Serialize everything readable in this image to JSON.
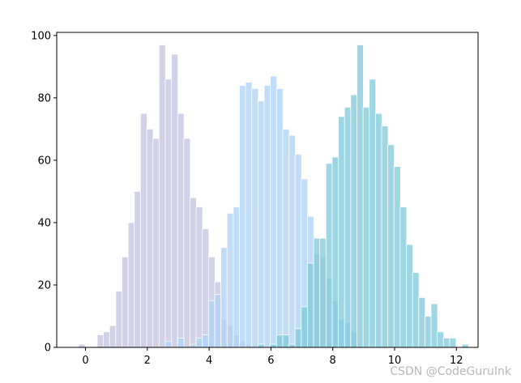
{
  "chart_data": {
    "type": "bar",
    "title": "",
    "xlabel": "",
    "ylabel": "",
    "xlim": [
      -0.93,
      12.7
    ],
    "ylim": [
      0,
      101
    ],
    "xticks": [
      0,
      2,
      4,
      6,
      8,
      10,
      12
    ],
    "yticks": [
      0,
      20,
      40,
      60,
      80,
      100
    ],
    "grid": false,
    "bar_width": 0.21,
    "series": [
      {
        "color": "#c9c9e4",
        "opacity": 0.85,
        "x": [
          -0.22,
          0.38,
          0.58,
          0.78,
          0.98,
          1.18,
          1.38,
          1.58,
          1.78,
          1.98,
          2.18,
          2.38,
          2.58,
          2.78,
          2.98,
          3.18,
          3.38,
          3.58,
          3.78,
          3.98,
          4.18,
          4.38,
          4.58,
          4.78,
          4.98,
          5.18
        ],
        "values": [
          1,
          4,
          5,
          7,
          18,
          29,
          40,
          50,
          75,
          70,
          67,
          97,
          86,
          94,
          75,
          67,
          48,
          45,
          38,
          29,
          21,
          9,
          7,
          4,
          2,
          1
        ]
      },
      {
        "color": "#b3d4f5",
        "opacity": 0.8,
        "x": [
          2.58,
          2.98,
          3.38,
          3.58,
          3.78,
          3.98,
          4.18,
          4.38,
          4.58,
          4.78,
          4.98,
          5.18,
          5.38,
          5.58,
          5.78,
          5.98,
          6.18,
          6.38,
          6.58,
          6.78,
          6.98,
          7.18,
          7.38,
          7.58,
          7.78,
          7.98,
          8.18,
          8.38,
          8.58
        ],
        "values": [
          2,
          3,
          1,
          3,
          4,
          15,
          17,
          32,
          43,
          45,
          84,
          85,
          83,
          79,
          84,
          87,
          83,
          70,
          68,
          62,
          54,
          42,
          30,
          29,
          22,
          15,
          9,
          8,
          5
        ]
      },
      {
        "color": "#7ec9da",
        "opacity": 0.75,
        "x": [
          5.58,
          5.98,
          6.18,
          6.38,
          6.58,
          6.78,
          6.98,
          7.18,
          7.38,
          7.58,
          7.78,
          7.98,
          8.18,
          8.38,
          8.58,
          8.78,
          8.98,
          9.18,
          9.38,
          9.58,
          9.78,
          9.98,
          10.18,
          10.38,
          10.58,
          10.78,
          10.98,
          11.18,
          11.38,
          11.58,
          11.78,
          12.18
        ],
        "values": [
          1,
          1,
          4,
          4,
          1,
          6,
          13,
          27,
          35,
          35,
          59,
          61,
          74,
          77,
          81,
          97,
          77,
          86,
          75,
          71,
          65,
          58,
          45,
          33,
          24,
          16,
          10,
          14,
          5,
          3,
          3,
          1
        ]
      }
    ]
  },
  "watermark": "CSDN @CodeGuruInk"
}
